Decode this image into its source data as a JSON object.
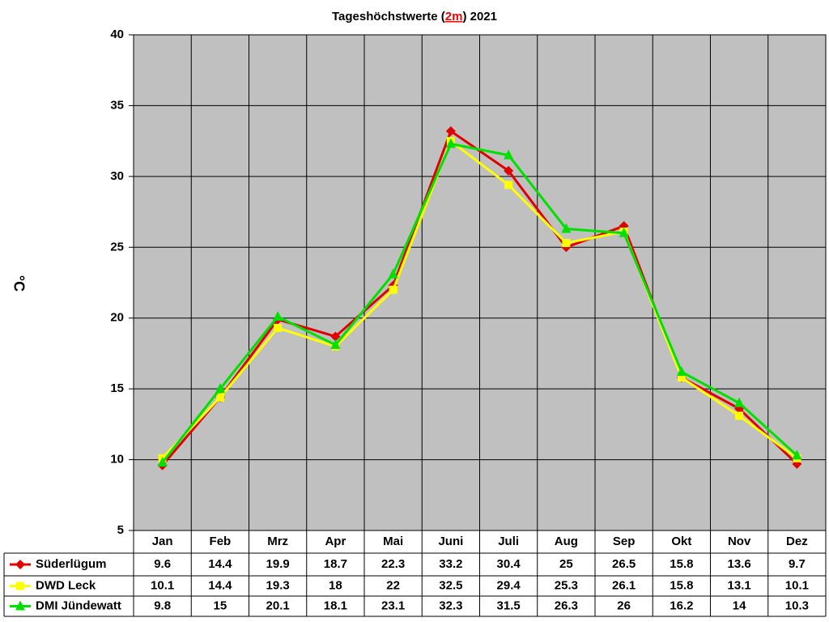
{
  "chart_data": {
    "type": "line",
    "title": [
      "Tageshöchstwerte (",
      "2m",
      ") 2021"
    ],
    "y_label": "°C",
    "categories": [
      "Jan",
      "Feb",
      "Mrz",
      "Apr",
      "Mai",
      "Juni",
      "Juli",
      "Aug",
      "Sep",
      "Okt",
      "Nov",
      "Dez"
    ],
    "series": [
      {
        "name": "Süderlügum",
        "color": "#e00000",
        "marker": "diamond",
        "values": [
          9.6,
          14.4,
          19.9,
          18.7,
          22.3,
          33.2,
          30.4,
          25,
          26.5,
          15.8,
          13.6,
          9.7
        ]
      },
      {
        "name": "DWD Leck",
        "color": "#ffff00",
        "marker": "square",
        "values": [
          10.1,
          14.4,
          19.3,
          18,
          22,
          32.5,
          29.4,
          25.3,
          26.1,
          15.8,
          13.1,
          10.1
        ]
      },
      {
        "name": "DMI Jündewatt",
        "color": "#00e000",
        "marker": "triangle",
        "values": [
          9.8,
          15,
          20.1,
          18.1,
          23.1,
          32.3,
          31.5,
          26.3,
          26,
          16.2,
          14,
          10.3
        ]
      }
    ],
    "ylim": [
      5,
      40
    ],
    "yticks": [
      5,
      10,
      15,
      20,
      25,
      30,
      35,
      40
    ],
    "grid": true,
    "plot_background": "#c0c0c0",
    "title_highlight_color": "#ff0000"
  }
}
